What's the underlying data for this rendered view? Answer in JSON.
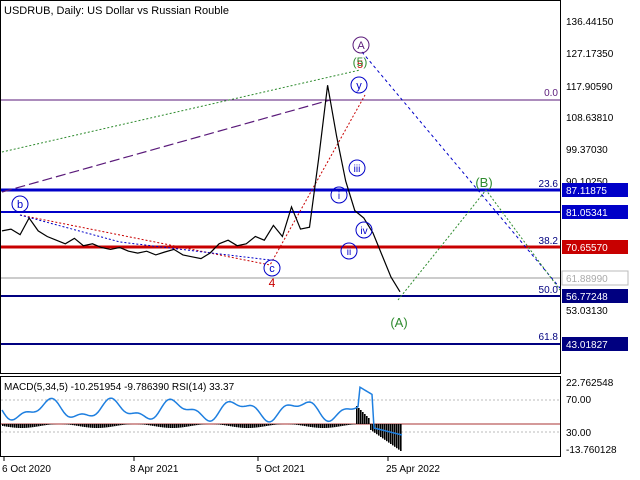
{
  "window": {
    "title": "USDRUB, Daily:  US Dollar vs Russian Rouble"
  },
  "colors": {
    "background": "#ffffff",
    "price_line": "#000000",
    "blue_level": "#0000c8",
    "red_level": "#c80000",
    "purple_wave": "#5a1a7a",
    "green_wave": "#2e8b2e",
    "macd_fill": "#000000",
    "rsi_line": "#1e7fe0"
  },
  "main_axis": {
    "ticks": [
      "136.44150",
      "127.17350",
      "117.90590",
      "108.63810",
      "99.37030",
      "90.10250",
      "53.03130"
    ]
  },
  "price_labels": [
    {
      "text": "87.11875",
      "style": "blue"
    },
    {
      "text": "81.05341",
      "style": "blue"
    },
    {
      "text": "70.65570",
      "style": "red"
    },
    {
      "text": "61.88990",
      "style": "current"
    },
    {
      "text": "56.77248",
      "style": "blue"
    },
    {
      "text": "43.01827",
      "style": "blue"
    }
  ],
  "fib_levels": [
    "0.0",
    "23.6",
    "38.2",
    "50.0",
    "61.8"
  ],
  "wave_labels": {
    "A_top": "A",
    "five": "5",
    "five_green": "(5)",
    "y": "y",
    "iii": "iii",
    "i": "i",
    "iv": "iv",
    "ii": "ii",
    "b": "b",
    "c": "c",
    "four": "4",
    "B_paren": "(B)",
    "A_paren": "(A)"
  },
  "indicator": {
    "title": "MACD(5,34,5) -10.251954 -9.786390 RSI(14) 33.37",
    "ticks": [
      "22.762548",
      "70.00",
      "30.00",
      "-13.760128"
    ]
  },
  "x_axis": {
    "ticks": [
      "6 Oct 2020",
      "8 Apr 2021",
      "5 Oct 2021",
      "25 Apr 2022"
    ]
  },
  "chart_data": {
    "type": "line",
    "title": "USDRUB, Daily:  US Dollar vs Russian Rouble",
    "x_tick_labels": [
      "6 Oct 2020",
      "8 Apr 2021",
      "5 Oct 2021",
      "25 Apr 2022"
    ],
    "ylim": [
      40,
      140
    ],
    "series": [
      {
        "values": [
          78.5,
          79.0,
          77.5,
          82.0,
          78.5,
          77.0,
          76.0,
          75.0,
          76.5,
          74.5,
          75.0,
          74.0,
          73.5,
          74.0,
          73.0,
          72.5,
          73.0,
          72.0,
          72.8,
          73.5,
          72.0,
          71.5,
          71.0,
          72.5,
          75.0,
          76.0,
          74.5,
          75.0,
          77.0,
          76.0,
          80.0,
          77.0,
          85.0,
          79.0,
          79.5,
          98.0,
          118.0,
          104.0,
          92.0,
          84.0,
          82.0,
          78.0,
          72.0,
          66.0,
          62.0
        ]
      }
    ],
    "horizontal_levels": [
      {
        "value": 117.9,
        "fib": "0.0"
      },
      {
        "value": 87.11875,
        "fib": "23.6"
      },
      {
        "value": 81.05341
      },
      {
        "value": 70.6557,
        "fib": "38.2"
      },
      {
        "value": 61.8899
      },
      {
        "value": 56.77248,
        "fib": "50.0"
      },
      {
        "value": 43.01827,
        "fib": "61.8"
      }
    ],
    "indicator_ylim": [
      -13.760128,
      22.762548
    ]
  }
}
